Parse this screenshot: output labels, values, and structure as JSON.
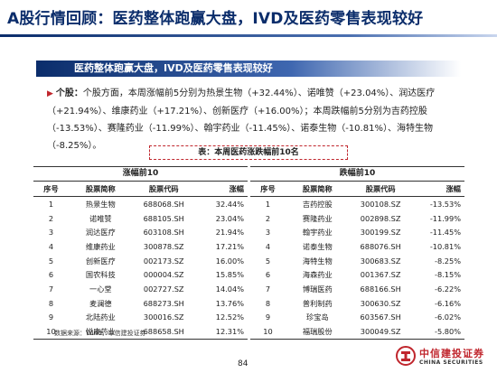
{
  "page": {
    "title": "A股行情回顾：医药整体跑赢大盘，IVD及医药零售表现较好",
    "subtitle": "医药整体跑赢大盘，IVD及医药零售表现较好",
    "page_number": "84"
  },
  "stocks": {
    "lead": "个股：",
    "text": "个股方面，本周涨幅前5分别为热景生物（+32.44%）、诺唯赞（+23.04%）、润达医疗（+21.94%）、维康药业（+17.21%）、创新医疗（+16.00%）；本周跌幅前5分别为吉药控股（-13.53%）、赛隆药业（-11.99%）、翰宇药业（-11.45%）、诺泰生物（-10.81%）、海特生物（-8.25%）。"
  },
  "table": {
    "caption": "表：本周医药涨跌幅前10名",
    "columns": {
      "index": "序号",
      "name": "股票简称",
      "code": "股票代码",
      "change": "涨幅"
    },
    "gainers": {
      "header": "涨幅前10",
      "rows": [
        {
          "index": "1",
          "name": "热景生物",
          "code": "688068.SH",
          "change": "32.44%"
        },
        {
          "index": "2",
          "name": "诺唯赞",
          "code": "688105.SH",
          "change": "23.04%"
        },
        {
          "index": "3",
          "name": "润达医疗",
          "code": "603108.SH",
          "change": "21.94%"
        },
        {
          "index": "4",
          "name": "维康药业",
          "code": "300878.SZ",
          "change": "17.21%"
        },
        {
          "index": "5",
          "name": "创新医疗",
          "code": "002173.SZ",
          "change": "16.00%"
        },
        {
          "index": "6",
          "name": "国农科技",
          "code": "000004.SZ",
          "change": "15.85%"
        },
        {
          "index": "7",
          "name": "一心堂",
          "code": "002727.SZ",
          "change": "14.04%"
        },
        {
          "index": "8",
          "name": "麦澜德",
          "code": "688273.SH",
          "change": "13.76%"
        },
        {
          "index": "9",
          "name": "北陆药业",
          "code": "300016.SZ",
          "change": "12.52%"
        },
        {
          "index": "10",
          "name": "悦康药业",
          "code": "688658.SH",
          "change": "12.31%"
        }
      ]
    },
    "losers": {
      "header": "跌幅前10",
      "rows": [
        {
          "index": "1",
          "name": "吉药控股",
          "code": "300108.SZ",
          "change": "-13.53%"
        },
        {
          "index": "2",
          "name": "赛隆药业",
          "code": "002898.SZ",
          "change": "-11.99%"
        },
        {
          "index": "3",
          "name": "翰宇药业",
          "code": "300199.SZ",
          "change": "-11.45%"
        },
        {
          "index": "4",
          "name": "诺泰生物",
          "code": "688076.SH",
          "change": "-10.81%"
        },
        {
          "index": "5",
          "name": "海特生物",
          "code": "300683.SZ",
          "change": "-8.25%"
        },
        {
          "index": "6",
          "name": "海森药业",
          "code": "001367.SZ",
          "change": "-8.15%"
        },
        {
          "index": "7",
          "name": "博瑞医药",
          "code": "688166.SH",
          "change": "-6.22%"
        },
        {
          "index": "8",
          "name": "普利制药",
          "code": "300630.SZ",
          "change": "-6.16%"
        },
        {
          "index": "9",
          "name": "珍宝岛",
          "code": "603567.SH",
          "change": "-6.02%"
        },
        {
          "index": "10",
          "name": "福瑞股份",
          "code": "300049.SZ",
          "change": "-5.80%"
        }
      ]
    }
  },
  "source": "数据来源：Wind，中信建投证券",
  "logo": {
    "name_cn": "中信建投证券",
    "name_en": "CHINA SECURITIES"
  },
  "colors": {
    "navy": "#0b2d6b",
    "accent_red": "#c0262d"
  }
}
